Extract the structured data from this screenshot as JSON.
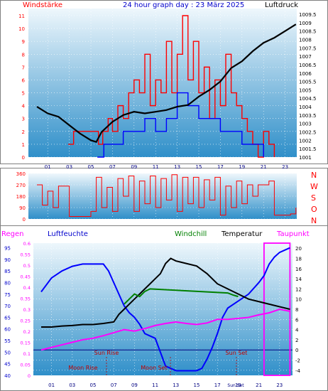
{
  "header": {
    "left_label": "Windstärke",
    "title": "24 hour graph day : 23 März 2025",
    "right_label": "Luftdruck"
  },
  "wind_dir": {
    "letters": [
      "N",
      "W",
      "S",
      "O",
      "N"
    ]
  },
  "bottom_header": {
    "regen": "Regen",
    "luftfeuchte": "Luftfeuchte",
    "windchill": "Windchill",
    "temperatur": "Temperatur",
    "taupunkt": "Taupunkt"
  },
  "colors": {
    "wind": "#ff0000",
    "gust": "#0000ff",
    "pressure": "#000000",
    "humidity": "#0000ff",
    "temperature": "#000000",
    "dewpoint": "#ff00ff",
    "windchill": "#008000",
    "rain": "#ff00ff",
    "plot_top": "#eef7fc",
    "plot_bottom": "#2f8fc9"
  },
  "chart_data": [
    {
      "type": "line",
      "x_ticks": [
        "01",
        "03",
        "05",
        "07",
        "09",
        "11",
        "13",
        "15",
        "17",
        "19",
        "21",
        "23"
      ],
      "left_axis": {
        "label": "Windstärke",
        "ticks": [
          "0",
          "1",
          "2",
          "3",
          "4",
          "5",
          "6",
          "7",
          "8",
          "9",
          "10",
          "11"
        ],
        "range": [
          0,
          11
        ]
      },
      "right_axis": {
        "label": "Luftdruck",
        "ticks": [
          "1001",
          "1001.5",
          "1002",
          "1002.5",
          "1003",
          "1003.5",
          "1004",
          "1004.5",
          "1005",
          "1005.5",
          "1006",
          "1006.5",
          "1007",
          "1007.5",
          "1008",
          "1008.5",
          "1009",
          "1009.5"
        ],
        "range": [
          1001,
          1009.5
        ]
      },
      "series": [
        {
          "name": "Luftdruck",
          "axis": "right",
          "x": [
            0,
            1,
            2,
            3,
            4,
            5,
            5.5,
            6,
            7,
            8,
            9,
            10,
            11,
            12,
            13,
            14,
            15,
            16,
            17,
            18,
            19,
            20,
            21,
            22,
            23,
            24
          ],
          "y": [
            1004.0,
            1003.6,
            1003.4,
            1002.9,
            1002.4,
            1002.0,
            1001.9,
            1002.5,
            1003.1,
            1003.5,
            1003.7,
            1003.6,
            1003.7,
            1003.8,
            1004.0,
            1004.1,
            1004.6,
            1005.0,
            1005.5,
            1006.3,
            1006.7,
            1007.3,
            1007.8,
            1008.1,
            1008.5,
            1008.9
          ]
        },
        {
          "name": "Wind",
          "axis": "left",
          "x": [
            2.9,
            3.4,
            5.7,
            6.1,
            6.6,
            7.0,
            7.5,
            8,
            8.5,
            9,
            9.5,
            10,
            10.5,
            11,
            11.5,
            12,
            12.5,
            13,
            13.5,
            14,
            14.5,
            15,
            15.5,
            16,
            16.5,
            17,
            17.5,
            18,
            18.5,
            19,
            19.5,
            20,
            20.5,
            21,
            21.5,
            22
          ],
          "y": [
            1,
            2,
            1,
            2,
            3,
            2,
            4,
            3,
            5,
            6,
            5,
            8,
            4,
            6,
            5,
            9,
            5,
            8,
            11,
            6,
            9,
            5,
            7,
            3,
            6,
            4,
            8,
            5,
            4,
            3,
            2,
            1,
            0,
            2,
            1,
            0
          ]
        },
        {
          "name": "Böen",
          "axis": "left",
          "x": [
            5.6,
            6.2,
            7.0,
            8,
            9,
            10,
            11,
            12,
            13,
            14,
            15,
            16,
            17,
            18,
            19,
            20,
            21
          ],
          "y": [
            0,
            1,
            1,
            2,
            2,
            3,
            2,
            3,
            5,
            4,
            3,
            3,
            2,
            2,
            1,
            1,
            0
          ]
        }
      ]
    },
    {
      "type": "line",
      "x_ticks": [
        "01",
        "03",
        "05",
        "07",
        "09",
        "11",
        "13",
        "15",
        "17",
        "19",
        "21",
        "23"
      ],
      "left_axis": {
        "ticks": [
          "0",
          "90",
          "180",
          "270",
          "360"
        ],
        "range": [
          0,
          360
        ]
      },
      "series": [
        {
          "name": "Windrichtung",
          "x": [
            0,
            0.5,
            1,
            1.5,
            2,
            3,
            4,
            5,
            5.5,
            6,
            6.5,
            7,
            7.5,
            8,
            8.5,
            9,
            9.5,
            10,
            10.5,
            11,
            11.5,
            12,
            12.5,
            13,
            13.5,
            14,
            14.5,
            15,
            15.5,
            16,
            16.5,
            17,
            17.5,
            18,
            18.5,
            19,
            19.5,
            20,
            20.5,
            21,
            21.5,
            22,
            23,
            23.5,
            24
          ],
          "y": [
            270,
            110,
            220,
            90,
            260,
            20,
            20,
            60,
            330,
            90,
            250,
            60,
            320,
            180,
            340,
            60,
            300,
            120,
            340,
            90,
            320,
            150,
            350,
            60,
            330,
            120,
            330,
            90,
            310,
            150,
            330,
            30,
            260,
            90,
            300,
            120,
            270,
            180,
            270,
            270,
            300,
            30,
            30,
            40,
            90
          ]
        }
      ]
    },
    {
      "type": "line",
      "x_ticks": [
        "01",
        "03",
        "05",
        "07",
        "09",
        "11",
        "13",
        "15",
        "17",
        "19",
        "21",
        "23"
      ],
      "rain_axis": {
        "label": "Regen",
        "ticks": [
          "0",
          "0.05",
          "0.1",
          "0.15",
          "0.2",
          "0.25",
          "0.3",
          "0.35",
          "0.4",
          "0.45",
          "0.5",
          "0.55",
          "0.6"
        ],
        "range": [
          0,
          0.6
        ]
      },
      "humidity_axis": {
        "label": "Luftfeuchte",
        "ticks": [
          "40",
          "45",
          "50",
          "55",
          "60",
          "65",
          "70",
          "75",
          "80",
          "85",
          "90",
          "95"
        ],
        "range": [
          40,
          97
        ]
      },
      "temp_axis": {
        "label": "Temperatur",
        "ticks": [
          "-4",
          "-2",
          "0",
          "2",
          "4",
          "6",
          "8",
          "10",
          "12",
          "14",
          "16",
          "18",
          "20"
        ],
        "range": [
          -5,
          21
        ]
      },
      "series": [
        {
          "name": "Luftfeuchte",
          "axis": "humidity",
          "x": [
            0,
            1,
            2,
            3,
            4,
            5,
            6,
            6.5,
            7,
            8,
            8.5,
            9,
            9.5,
            10,
            10.5,
            11,
            11.5,
            12,
            13,
            14,
            15,
            15.5,
            16,
            16.5,
            17,
            17.5,
            18,
            19,
            20,
            21,
            21.5,
            22,
            22.5,
            23,
            23.5,
            24
          ],
          "y": [
            76,
            82,
            85,
            87,
            88,
            88,
            88,
            85,
            80,
            70,
            67,
            65,
            62,
            58,
            57,
            56,
            50,
            44,
            42,
            42,
            42,
            43,
            47,
            52,
            58,
            65,
            69,
            72,
            75,
            80,
            83,
            88,
            91,
            93,
            94,
            95
          ]
        },
        {
          "name": "Temperatur",
          "axis": "temp",
          "x": [
            0,
            1,
            2,
            3,
            4,
            5,
            6,
            7,
            7.5,
            8,
            8.5,
            9,
            9.5,
            10,
            10.5,
            11,
            11.5,
            12,
            12.5,
            13,
            14,
            15,
            16,
            17,
            18,
            19,
            20,
            21,
            22,
            23,
            24
          ],
          "y": [
            4.5,
            4.5,
            4.7,
            4.8,
            5.0,
            5.0,
            5.2,
            5.5,
            7,
            8,
            9,
            10,
            11,
            12,
            13,
            14,
            15,
            17,
            18,
            17.5,
            17,
            16.5,
            15,
            13,
            12,
            11,
            10,
            9.5,
            9,
            8.5,
            8
          ]
        },
        {
          "name": "Windchill",
          "axis": "temp",
          "x": [
            8,
            8.5,
            9,
            9.5,
            10,
            10.5,
            18,
            18.5,
            19
          ],
          "y": [
            9,
            10,
            11,
            10.5,
            11.5,
            12,
            11.2,
            10.8,
            10.5
          ]
        },
        {
          "name": "Taupunkt",
          "axis": "temp",
          "x": [
            0,
            1,
            2,
            3,
            4,
            5,
            6,
            7,
            8,
            9,
            10,
            11,
            12,
            13,
            14,
            15,
            16,
            17,
            18,
            19,
            20,
            21,
            22,
            23,
            24
          ],
          "y": [
            0,
            0.5,
            1,
            1.5,
            2,
            2.3,
            2.8,
            3.4,
            4,
            3.7,
            4.2,
            4.8,
            5.2,
            5.5,
            5.2,
            5.0,
            5.3,
            6,
            6,
            6.2,
            6.4,
            6.9,
            7.3,
            8,
            7.6
          ]
        },
        {
          "name": "Regen",
          "axis": "rain",
          "x": [
            21.5,
            21.5,
            24,
            24
          ],
          "y": [
            0,
            0.6,
            0.6,
            0
          ]
        }
      ],
      "annotations": [
        "Sun Rise",
        "Sun Set",
        "Moon Rise",
        "Moon Set",
        "Sun Set"
      ]
    }
  ]
}
